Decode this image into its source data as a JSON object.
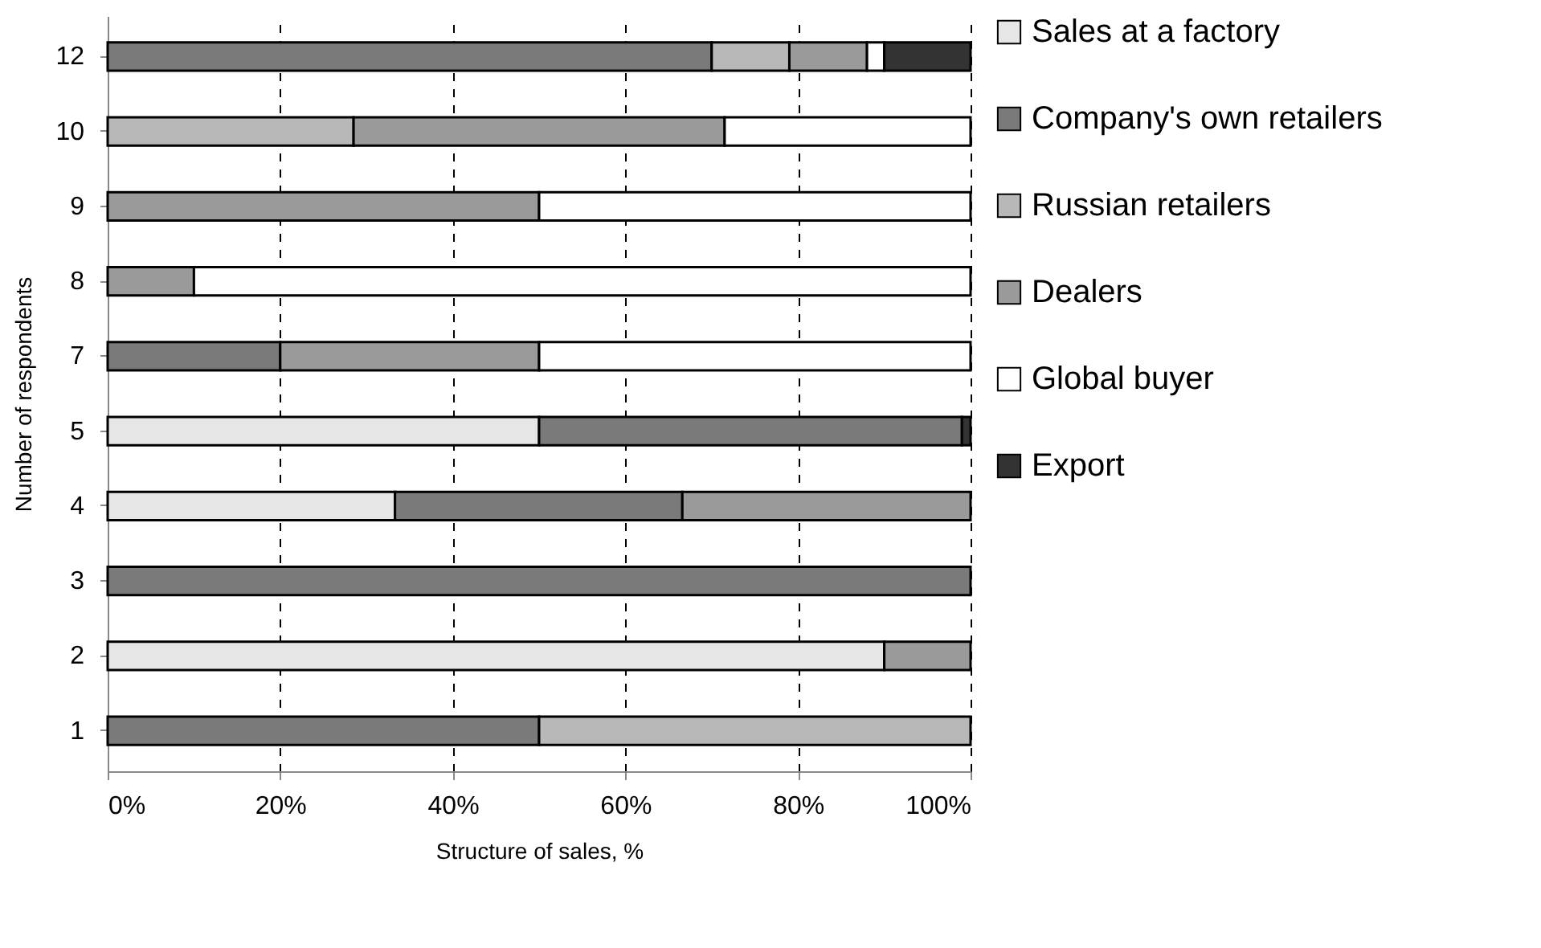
{
  "chart_data": {
    "type": "bar",
    "orientation": "horizontal",
    "stacked": true,
    "xlabel": "Structure of sales, %",
    "ylabel": "Number of respondents",
    "categories": [
      "12",
      "10",
      "9",
      "8",
      "7",
      "5",
      "4",
      "3",
      "2",
      "1"
    ],
    "series": [
      {
        "name": "Sales at a factory",
        "color": "#e6e6e6",
        "values": [
          null,
          null,
          null,
          null,
          null,
          50,
          33.3,
          null,
          90,
          null
        ]
      },
      {
        "name": "Company's own retailers",
        "color": "#7a7a7a",
        "values": [
          70,
          null,
          null,
          null,
          20,
          49,
          33.3,
          100,
          null,
          50
        ]
      },
      {
        "name": "Russian retailers",
        "color": "#b8b8b8",
        "values": [
          9,
          28.5,
          null,
          null,
          null,
          null,
          null,
          null,
          null,
          50
        ]
      },
      {
        "name": "Dealers",
        "color": "#9a9a9a",
        "values": [
          9,
          43,
          50,
          10,
          30,
          null,
          33.4,
          null,
          10,
          null
        ]
      },
      {
        "name": "Global buyer",
        "color": "#ffffff",
        "values": [
          2,
          28.5,
          50,
          90,
          50,
          null,
          null,
          null,
          null,
          null
        ]
      },
      {
        "name": "Export",
        "color": "#333333",
        "values": [
          10,
          null,
          null,
          null,
          null,
          1,
          null,
          null,
          null,
          null
        ]
      }
    ],
    "xlim": [
      0,
      100
    ],
    "xticks": [
      {
        "value": 0,
        "label": "0%"
      },
      {
        "value": 20,
        "label": "20%"
      },
      {
        "value": 40,
        "label": "40%"
      },
      {
        "value": 60,
        "label": "60%"
      },
      {
        "value": 80,
        "label": "80%"
      },
      {
        "value": 100,
        "label": "100%"
      }
    ],
    "grid": "x",
    "legend": "right"
  }
}
